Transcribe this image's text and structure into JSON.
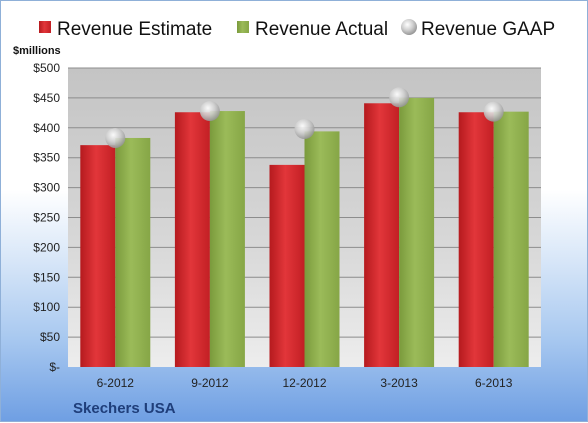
{
  "chart_data": {
    "type": "bar",
    "title": "",
    "company": "Skechers USA",
    "ylabel": "$millions",
    "ylim": [
      0,
      500
    ],
    "y_ticks": [
      0,
      50,
      100,
      150,
      200,
      250,
      300,
      350,
      400,
      450,
      500
    ],
    "y_tick_labels": [
      "$-",
      "$50",
      "$100",
      "$150",
      "$200",
      "$250",
      "$300",
      "$350",
      "$400",
      "$450",
      "$500"
    ],
    "categories": [
      "6-2012",
      "9-2012",
      "12-2012",
      "3-2013",
      "6-2013"
    ],
    "series": [
      {
        "name": "Revenue Estimate",
        "kind": "bar",
        "color": "#d9252a",
        "values": [
          371,
          426,
          338,
          441,
          426
        ]
      },
      {
        "name": "Revenue Actual",
        "kind": "bar",
        "color": "#8fad4e",
        "values": [
          383,
          428,
          394,
          450,
          427
        ]
      },
      {
        "name": "Revenue GAAP",
        "kind": "marker",
        "color": "#b8b8b8",
        "values": [
          383,
          428,
          398,
          451,
          427
        ]
      }
    ],
    "grid": true,
    "legend_position": "top"
  }
}
